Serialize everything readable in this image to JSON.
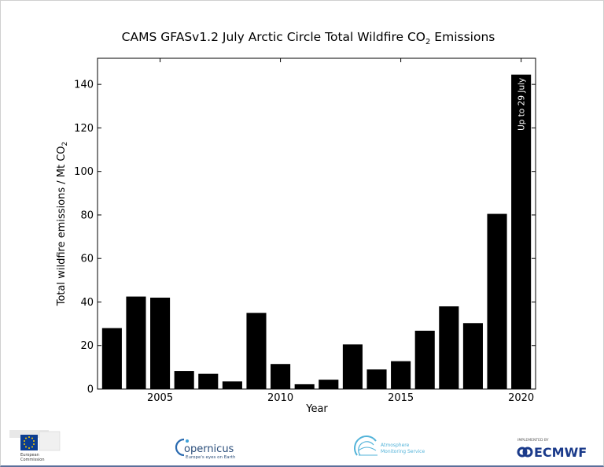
{
  "chart_data": {
    "type": "bar",
    "title_main": "CAMS GFASv1.2 July Arctic Circle Total Wildfire CO",
    "title_sub": "2",
    "title_end": " Emissions",
    "xlabel": "Year",
    "ylabel": "Total wildfire emissions / Mt CO",
    "ylabel_sub": "2",
    "ylim": [
      0,
      152
    ],
    "xlim": [
      2002.4,
      2020.6
    ],
    "yticks": [
      0,
      20,
      40,
      60,
      80,
      100,
      120,
      140
    ],
    "xticks": [
      2005,
      2010,
      2015,
      2020
    ],
    "categories": [
      2003,
      2004,
      2005,
      2006,
      2007,
      2008,
      2009,
      2010,
      2011,
      2012,
      2013,
      2014,
      2015,
      2016,
      2017,
      2018,
      2019,
      2020
    ],
    "values": [
      28,
      42.5,
      42,
      8.3,
      7,
      3.5,
      35,
      11.5,
      2.2,
      4.3,
      20.5,
      9,
      12.8,
      26.8,
      38,
      30.3,
      80.5,
      144.5
    ],
    "annotation": "Up to 29 July",
    "bar_color": "#000000"
  },
  "footer": {
    "ec_line1": "European",
    "ec_line2": "Commission",
    "copernicus_name": "opernicus",
    "copernicus_tagline": "Europe's eyes on Earth",
    "atmosphere_line1": "Atmosphere",
    "atmosphere_line2": "Monitoring Service",
    "ecmwf_top": "IMPLEMENTED BY",
    "ecmwf_name": "ECMWF"
  }
}
